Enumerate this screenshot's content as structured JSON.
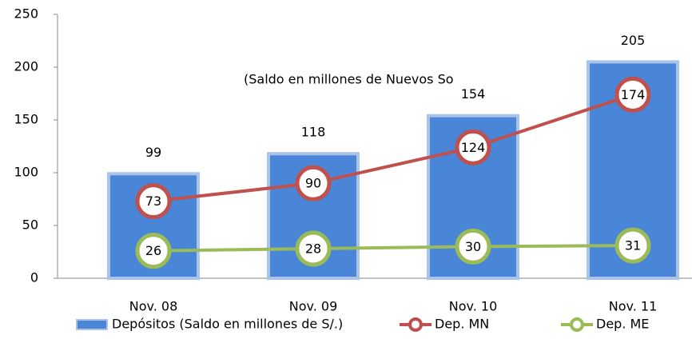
{
  "chart_data": {
    "type": "bar",
    "annotation": "(Saldo en millones de Nuevos So",
    "categories": [
      "Nov. 08",
      "Nov. 09",
      "Nov. 10",
      "Nov. 11"
    ],
    "series": [
      {
        "name": "Depósitos (Saldo en millones de S/.)",
        "type": "bar",
        "color": "#4a86d8",
        "values": [
          99,
          118,
          154,
          205
        ]
      },
      {
        "name": "Dep. MN",
        "type": "line",
        "color": "#c0504d",
        "values": [
          73,
          90,
          124,
          174
        ]
      },
      {
        "name": "Dep. ME",
        "type": "line",
        "color": "#9bbb59",
        "values": [
          26,
          28,
          30,
          31
        ]
      }
    ],
    "ylim": [
      0,
      250
    ],
    "yticks": [
      0,
      50,
      100,
      150,
      200,
      250
    ],
    "grid": false,
    "legend": "bottom"
  }
}
